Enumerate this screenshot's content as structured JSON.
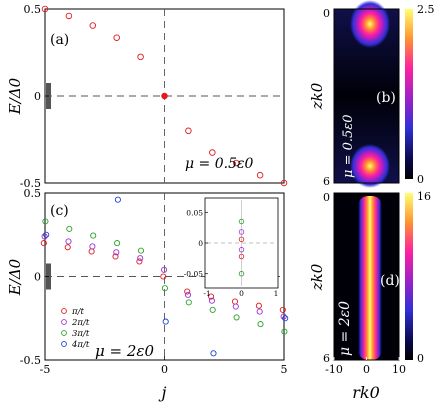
{
  "colors": {
    "red": "#e41a1c",
    "purple": "#9b30d9",
    "green": "#2ca02c",
    "blue": "#1f3fd8",
    "dashed": "#555555",
    "inset_zero": "#aaaaaa",
    "gray_bar": "#555555"
  },
  "chart_data": [
    {
      "id": "panel-a",
      "type": "scatter",
      "panel_label": "(a)",
      "ylabel": "E/Δ0",
      "annotation": "μ = 0.5ε0",
      "xlim": [
        -5,
        5
      ],
      "ylim": [
        -0.5,
        0.5
      ],
      "x_ticks": [],
      "y_ticks": [
        {
          "value": 0.5,
          "label": "0.5"
        },
        {
          "value": 0,
          "label": "0"
        },
        {
          "value": -0.5,
          "label": "-0.5"
        }
      ],
      "series": [
        {
          "color": "red",
          "x": [
            -5,
            -4,
            -3,
            -2,
            -1,
            0,
            1,
            2,
            3,
            4,
            5
          ],
          "y": [
            0.5,
            0.46,
            0.405,
            0.335,
            0.225,
            0.0,
            -0.2,
            -0.325,
            -0.385,
            -0.455,
            -0.5
          ],
          "highlight_index": 5
        }
      ]
    },
    {
      "id": "panel-c",
      "type": "scatter",
      "panel_label": "(c)",
      "ylabel": "E/Δ0",
      "xlabel": "j",
      "annotation": "μ = 2ε0",
      "xlim": [
        -5,
        5
      ],
      "ylim": [
        -0.5,
        0.5
      ],
      "x_ticks": [
        {
          "value": -5,
          "label": "-5"
        },
        {
          "value": 0,
          "label": "0"
        },
        {
          "value": 5,
          "label": "5"
        }
      ],
      "y_ticks": [
        {
          "value": 0.5,
          "label": "0.5"
        },
        {
          "value": 0,
          "label": "0"
        },
        {
          "value": -0.5,
          "label": "-0.5"
        }
      ],
      "legend": [
        "π/t",
        "2π/t",
        "3π/t",
        "4π/t"
      ],
      "legend_position": "bottom-left",
      "series": [
        {
          "legend_index": 0,
          "color": "red",
          "x": [
            -5,
            -4,
            -3,
            -2,
            -1,
            0,
            1,
            2,
            3,
            4,
            5
          ],
          "y": [
            0.2,
            0.175,
            0.15,
            0.12,
            0.09,
            0.0,
            -0.09,
            -0.12,
            -0.15,
            -0.175,
            -0.2
          ]
        },
        {
          "legend_index": 1,
          "color": "purple",
          "x": [
            -5,
            -4,
            -3,
            -2,
            -1,
            0,
            1,
            2,
            3,
            4,
            5
          ],
          "y": [
            0.24,
            0.21,
            0.18,
            0.145,
            0.11,
            0.04,
            -0.11,
            -0.145,
            -0.18,
            -0.21,
            -0.24
          ]
        },
        {
          "legend_index": 2,
          "color": "green",
          "x": [
            -5,
            -4,
            -3,
            -2,
            -1,
            0,
            1,
            2,
            3,
            4,
            5
          ],
          "y": [
            0.33,
            0.285,
            0.245,
            0.2,
            0.155,
            -0.07,
            -0.155,
            -0.2,
            -0.245,
            -0.285,
            -0.33
          ]
        },
        {
          "legend_index": 3,
          "color": "blue",
          "x": [
            -5,
            -2,
            0,
            2,
            5
          ],
          "y": [
            0.25,
            0.46,
            -0.27,
            -0.46,
            -0.25
          ]
        }
      ],
      "inset": {
        "xlim": [
          -1,
          1
        ],
        "ylim": [
          -0.07,
          0.07
        ],
        "x_ticks": [
          {
            "value": -1,
            "label": "-1"
          },
          {
            "value": 0,
            "label": "0"
          },
          {
            "value": 1,
            "label": "1"
          }
        ],
        "y_ticks": [
          {
            "value": 0.05,
            "label": "0.05"
          },
          {
            "value": 0,
            "label": "0"
          },
          {
            "value": -0.05,
            "label": "-0.05"
          }
        ],
        "points": [
          {
            "x": 0,
            "y": 0.035,
            "color": "green"
          },
          {
            "x": 0,
            "y": 0.018,
            "color": "purple"
          },
          {
            "x": 0,
            "y": 0.006,
            "color": "red"
          },
          {
            "x": 0,
            "y": -0.011,
            "color": "purple"
          },
          {
            "x": 0,
            "y": -0.022,
            "color": "red"
          },
          {
            "x": 0,
            "y": -0.05,
            "color": "green"
          }
        ]
      }
    },
    {
      "id": "panel-b",
      "type": "heatmap",
      "panel_label": "(b)",
      "annotation": "μ = 0.5ε0",
      "ylabel": "zk0",
      "y_ticks": [
        {
          "value": 0,
          "label": "0"
        },
        {
          "value": 6,
          "label": "6"
        }
      ],
      "colorbar_ticks": [
        {
          "value": 2.5,
          "label": "2.5"
        },
        {
          "value": 0,
          "label": "0"
        }
      ],
      "colorbar_range": [
        0,
        2.5
      ]
    },
    {
      "id": "panel-d",
      "type": "heatmap",
      "panel_label": "(d)",
      "annotation": "μ = 2ε0",
      "ylabel": "zk0",
      "xlabel": "rk0",
      "x_ticks": [
        {
          "value": -10,
          "label": "-10"
        },
        {
          "value": 0,
          "label": "0"
        },
        {
          "value": 10,
          "label": "10"
        }
      ],
      "y_ticks": [
        {
          "value": 0,
          "label": "0"
        },
        {
          "value": 6,
          "label": "6"
        }
      ],
      "colorbar_ticks": [
        {
          "value": 16,
          "label": "16"
        },
        {
          "value": 0,
          "label": "0"
        }
      ],
      "colorbar_range": [
        0,
        16
      ]
    }
  ]
}
